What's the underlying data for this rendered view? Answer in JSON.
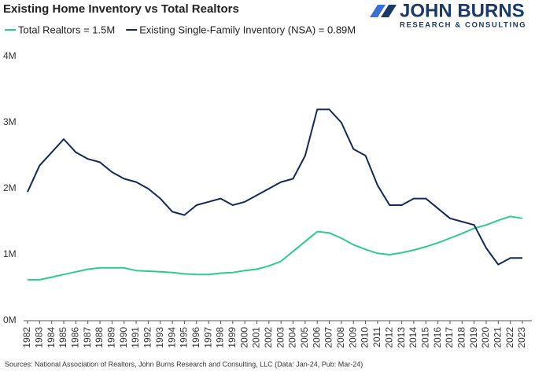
{
  "chart_data": {
    "type": "line",
    "title": "Existing Home Inventory vs Total Realtors",
    "brand": "JOHN BURNS",
    "brand_subtitle": "RESEARCH & CONSULTING",
    "source": "Sources: National Association of Realtors, John Burns Research and Consulting, LLC (Data: Jan-24, Pub: Mar-24)",
    "categories": [
      "1982",
      "1983",
      "1984",
      "1985",
      "1986",
      "1987",
      "1988",
      "1989",
      "1990",
      "1991",
      "1992",
      "1993",
      "1994",
      "1995",
      "1996",
      "1997",
      "1998",
      "1999",
      "2000",
      "2001",
      "2002",
      "2003",
      "2004",
      "2005",
      "2006",
      "2007",
      "2008",
      "2009",
      "2010",
      "2011",
      "2012",
      "2013",
      "2014",
      "2015",
      "2016",
      "2017",
      "2018",
      "2019",
      "2020",
      "2021",
      "2022",
      "2023"
    ],
    "series": [
      {
        "name": "Total Realtors = 1.5M",
        "color": "#2ecc8a",
        "values": [
          0.62,
          0.62,
          0.66,
          0.7,
          0.74,
          0.78,
          0.8,
          0.8,
          0.8,
          0.76,
          0.75,
          0.74,
          0.73,
          0.71,
          0.7,
          0.7,
          0.72,
          0.73,
          0.76,
          0.78,
          0.83,
          0.9,
          1.05,
          1.2,
          1.35,
          1.33,
          1.25,
          1.15,
          1.08,
          1.02,
          1.0,
          1.03,
          1.07,
          1.12,
          1.18,
          1.25,
          1.32,
          1.4,
          1.45,
          1.52,
          1.58,
          1.55
        ]
      },
      {
        "name": "Existing Single-Family Inventory (NSA) = 0.89M",
        "color": "#14295a",
        "values": [
          1.95,
          2.35,
          2.55,
          2.75,
          2.55,
          2.45,
          2.4,
          2.25,
          2.15,
          2.1,
          2.0,
          1.85,
          1.65,
          1.6,
          1.75,
          1.8,
          1.85,
          1.75,
          1.8,
          1.9,
          2.0,
          2.1,
          2.15,
          2.5,
          3.2,
          3.2,
          3.0,
          2.6,
          2.5,
          2.05,
          1.75,
          1.75,
          1.85,
          1.85,
          1.7,
          1.55,
          1.5,
          1.45,
          1.1,
          0.85,
          0.95,
          0.95
        ]
      }
    ],
    "ylim": [
      0,
      4
    ],
    "yticks": [
      {
        "value": 0,
        "label": "0M"
      },
      {
        "value": 1,
        "label": "1M"
      },
      {
        "value": 2,
        "label": "2M"
      },
      {
        "value": 3,
        "label": "3M"
      },
      {
        "value": 4,
        "label": "4M"
      }
    ],
    "grid": false
  }
}
